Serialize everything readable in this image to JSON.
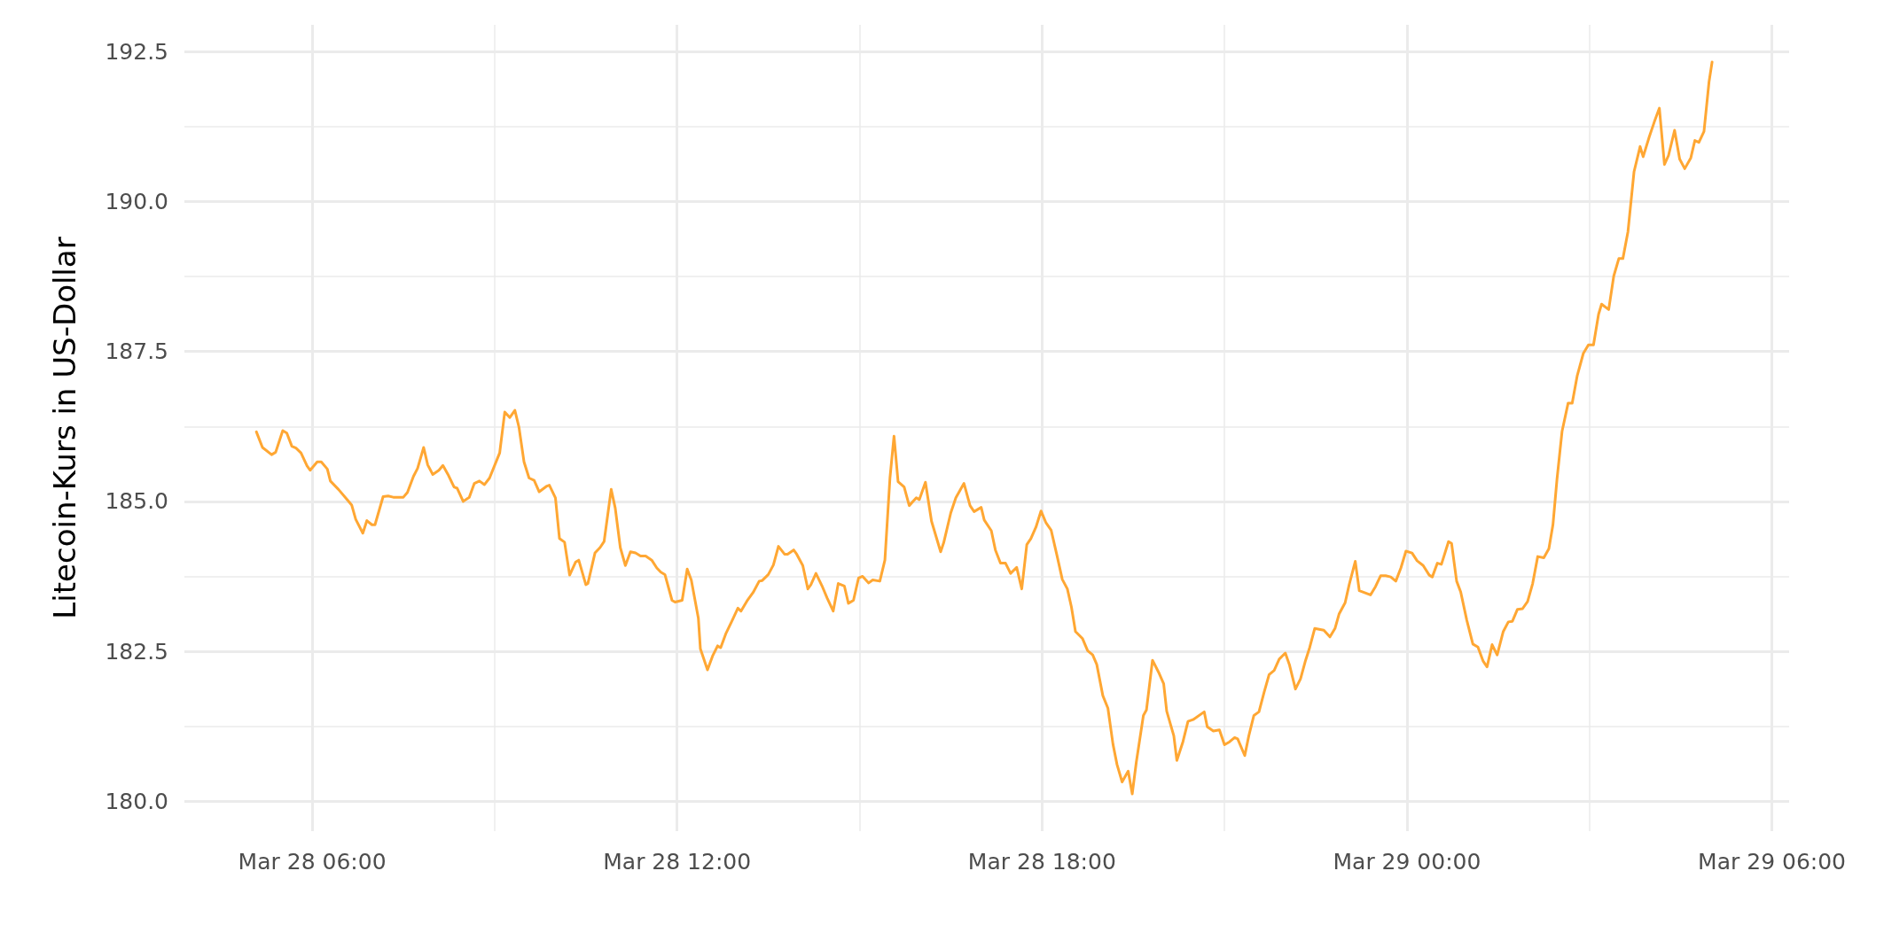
{
  "chart_data": {
    "type": "line",
    "ylabel": "Litecoin-Kurs in US-Dollar",
    "color": "#ffa733",
    "marker": "none",
    "line_style": "solid",
    "grid": true,
    "xlim": [
      "--03-28T03:54",
      "--03-29T06:17"
    ],
    "xticks": [
      {
        "value": "--03-28T06:00",
        "label": "Mar 28 06:00"
      },
      {
        "value": "--03-28T09:00",
        "label": null
      },
      {
        "value": "--03-28T12:00",
        "label": "Mar 28 12:00"
      },
      {
        "value": "--03-28T15:00",
        "label": null
      },
      {
        "value": "--03-28T18:00",
        "label": "Mar 28 18:00"
      },
      {
        "value": "--03-28T21:00",
        "label": null
      },
      {
        "value": "--03-29T00:00",
        "label": "Mar 29 00:00"
      },
      {
        "value": "--03-29T03:00",
        "label": null
      },
      {
        "value": "--03-29T06:00",
        "label": "Mar 29 06:00"
      }
    ],
    "ylim": [
      179.5,
      192.95
    ],
    "yticks": [
      {
        "value": 180,
        "label": "180.0"
      },
      {
        "value": 181.25,
        "label": null
      },
      {
        "value": 182.5,
        "label": "182.5"
      },
      {
        "value": 183.75,
        "label": null
      },
      {
        "value": 185,
        "label": "185.0"
      },
      {
        "value": 186.25,
        "label": null
      },
      {
        "value": 187.5,
        "label": "187.5"
      },
      {
        "value": 188.75,
        "label": null
      },
      {
        "value": 190,
        "label": "190.0"
      },
      {
        "value": 191.25,
        "label": null
      },
      {
        "value": 192.5,
        "label": "192.5"
      }
    ],
    "x": [
      "--03-28T05:05",
      "--03-28T05:11",
      "--03-28T05:20",
      "--03-28T05:24",
      "--03-28T05:31",
      "--03-28T05:35",
      "--03-28T05:40",
      "--03-28T05:44",
      "--03-28T05:49",
      "--03-28T05:55",
      "--03-28T05:58",
      "--03-28T06:05",
      "--03-28T06:09",
      "--03-28T06:15",
      "--03-28T06:18",
      "--03-28T06:26",
      "--03-28T06:35",
      "--03-28T06:39",
      "--03-28T06:43",
      "--03-28T06:50",
      "--03-28T06:54",
      "--03-28T06:59",
      "--03-28T07:02",
      "--03-28T07:10",
      "--03-28T07:15",
      "--03-28T07:20",
      "--03-28T07:30",
      "--03-28T07:34",
      "--03-28T07:40",
      "--03-28T07:44",
      "--03-28T07:50",
      "--03-28T07:54",
      "--03-28T07:59",
      "--03-28T08:05",
      "--03-28T08:09",
      "--03-28T08:14",
      "--03-28T08:20",
      "--03-28T08:23",
      "--03-28T08:29",
      "--03-28T08:35",
      "--03-28T08:40",
      "--03-28T08:45",
      "--03-28T08:50",
      "--03-28T08:55",
      "--03-28T09:05",
      "--03-28T09:10",
      "--03-28T09:15",
      "--03-28T09:20",
      "--03-28T09:24",
      "--03-28T09:29",
      "--03-28T09:34",
      "--03-28T09:39",
      "--03-28T09:44",
      "--03-28T09:51",
      "--03-28T09:54",
      "--03-28T10:00",
      "--03-28T10:04",
      "--03-28T10:09",
      "--03-28T10:14",
      "--03-28T10:20",
      "--03-28T10:23",
      "--03-28T10:30",
      "--03-28T10:32",
      "--03-28T10:39",
      "--03-28T10:44",
      "--03-28T10:48",
      "--03-28T10:55",
      "--03-28T10:59",
      "--03-28T11:04",
      "--03-28T11:09",
      "--03-28T11:14",
      "--03-28T11:19",
      "--03-28T11:24",
      "--03-28T11:29",
      "--03-28T11:35",
      "--03-28T11:40",
      "--03-28T11:44",
      "--03-28T11:48",
      "--03-28T11:55",
      "--03-28T11:58",
      "--03-28T12:05",
      "--03-28T12:10",
      "--03-28T12:14",
      "--03-28T12:21",
      "--03-28T12:23",
      "--03-28T12:30",
      "--03-28T12:35",
      "--03-28T12:40",
      "--03-28T12:43",
      "--03-28T12:48",
      "--03-28T12:54",
      "--03-28T13:00",
      "--03-28T13:03",
      "--03-28T13:09",
      "--03-28T13:15",
      "--03-28T13:21",
      "--03-28T13:24",
      "--03-28T13:30",
      "--03-28T13:35",
      "--03-28T13:40",
      "--03-28T13:46",
      "--03-28T13:49",
      "--03-28T13:55",
      "--03-28T13:58",
      "--03-28T14:04",
      "--03-28T14:09",
      "--03-28T14:12",
      "--03-28T14:17",
      "--03-28T14:23",
      "--03-28T14:28",
      "--03-28T14:34",
      "--03-28T14:39",
      "--03-28T14:45",
      "--03-28T14:49",
      "--03-28T14:54",
      "--03-28T14:59",
      "--03-28T15:03",
      "--03-28T15:09",
      "--03-28T15:13",
      "--03-28T15:20",
      "--03-28T15:25",
      "--03-28T15:30",
      "--03-28T15:34",
      "--03-28T15:38",
      "--03-28T15:44",
      "--03-28T15:49",
      "--03-28T15:56",
      "--03-28T15:59",
      "--03-28T16:05",
      "--03-28T16:11",
      "--03-28T16:20",
      "--03-28T16:23",
      "--03-28T16:30",
      "--03-28T16:35",
      "--03-28T16:43",
      "--03-28T16:49",
      "--03-28T16:53",
      "--03-28T17:00",
      "--03-28T17:03",
      "--03-28T17:10",
      "--03-28T17:14",
      "--03-28T17:19",
      "--03-28T17:24",
      "--03-28T17:29",
      "--03-28T17:35",
      "--03-28T17:40",
      "--03-28T17:45",
      "--03-28T17:49",
      "--03-28T17:54",
      "--03-28T17:59",
      "--03-28T18:04",
      "--03-28T18:09",
      "--03-28T18:15",
      "--03-28T18:20",
      "--03-28T18:25",
      "--03-28T18:29",
      "--03-28T18:33",
      "--03-28T18:40",
      "--03-28T18:45",
      "--03-28T18:50",
      "--03-28T18:54",
      "--03-28T19:00",
      "--03-28T19:05",
      "--03-28T19:10",
      "--03-28T19:14",
      "--03-28T19:19",
      "--03-28T19:25",
      "--03-28T19:29",
      "--03-28T19:33",
      "--03-28T19:40",
      "--03-28T19:43",
      "--03-28T19:49",
      "--03-28T19:55",
      "--03-28T20:00",
      "--03-28T20:03",
      "--03-28T20:10",
      "--03-28T20:13",
      "--03-28T20:19",
      "--03-28T20:24",
      "--03-28T20:29",
      "--03-28T20:40",
      "--03-28T20:43",
      "--03-28T20:49",
      "--03-28T20:55",
      "--03-28T21:00",
      "--03-28T21:05",
      "--03-28T21:10",
      "--03-28T21:13",
      "--03-28T21:20",
      "--03-28T21:24",
      "--03-28T21:29",
      "--03-28T21:34",
      "--03-28T21:39",
      "--03-28T21:44",
      "--03-28T21:49",
      "--03-28T21:54",
      "--03-28T22:00",
      "--03-28T22:04",
      "--03-28T22:10",
      "--03-28T22:15",
      "--03-28T22:20",
      "--03-28T22:24",
      "--03-28T22:29",
      "--03-28T22:38",
      "--03-28T22:44",
      "--03-28T22:49",
      "--03-28T22:53",
      "--03-28T22:59",
      "--03-28T23:03",
      "--03-28T23:09",
      "--03-28T23:13",
      "--03-28T23:24",
      "--03-28T23:29",
      "--03-28T23:34",
      "--03-28T23:39",
      "--03-28T23:44",
      "--03-28T23:49",
      "--03-28T23:54",
      "--03-28T23:59",
      "--03-29T00:05",
      "--03-29T00:10",
      "--03-29T00:16",
      "--03-29T00:22",
      "--03-29T00:25",
      "--03-29T00:30",
      "--03-29T00:34",
      "--03-29T00:41",
      "--03-29T00:44",
      "--03-29T00:49",
      "--03-29T00:53",
      "--03-29T00:59",
      "--03-29T01:05",
      "--03-29T01:10",
      "--03-29T01:15",
      "--03-29T01:19",
      "--03-29T01:24",
      "--03-29T01:29",
      "--03-29T01:35",
      "--03-29T01:40",
      "--03-29T01:44",
      "--03-29T01:49",
      "--03-29T01:54",
      "--03-29T01:59",
      "--03-29T02:04",
      "--03-29T02:09",
      "--03-29T02:15",
      "--03-29T02:20",
      "--03-29T02:24",
      "--03-29T02:28",
      "--03-29T02:33",
      "--03-29T02:39",
      "--03-29T02:43",
      "--03-29T02:48",
      "--03-29T02:54",
      "--03-29T02:59",
      "--03-29T03:04",
      "--03-29T03:09",
      "--03-29T03:12",
      "--03-29T03:19",
      "--03-29T03:24",
      "--03-29T03:29",
      "--03-29T03:33",
      "--03-29T03:38",
      "--03-29T03:44",
      "--03-29T03:50",
      "--03-29T03:53",
      "--03-29T03:59",
      "--03-29T04:04",
      "--03-29T04:09",
      "--03-29T04:14",
      "--03-29T04:18",
      "--03-29T04:24",
      "--03-29T04:29",
      "--03-29T04:34",
      "--03-29T04:40",
      "--03-29T04:44",
      "--03-29T04:48",
      "--03-29T04:53",
      "--03-29T04:58",
      "--03-29T05:01"
    ],
    "values": [
      186.16,
      185.9,
      185.78,
      185.82,
      186.18,
      186.14,
      185.92,
      185.89,
      185.81,
      185.59,
      185.52,
      185.66,
      185.66,
      185.54,
      185.34,
      185.2,
      185.02,
      184.94,
      184.7,
      184.47,
      184.68,
      184.61,
      184.61,
      185.08,
      185.09,
      185.07,
      185.07,
      185.15,
      185.42,
      185.55,
      185.9,
      185.61,
      185.45,
      185.52,
      185.6,
      185.45,
      185.24,
      185.22,
      185.0,
      185.07,
      185.3,
      185.34,
      185.28,
      185.39,
      185.81,
      186.49,
      186.4,
      186.52,
      186.24,
      185.66,
      185.39,
      185.35,
      185.16,
      185.25,
      185.27,
      185.06,
      184.38,
      184.32,
      183.77,
      183.99,
      184.02,
      183.61,
      183.63,
      184.14,
      184.23,
      184.33,
      185.2,
      184.89,
      184.23,
      183.93,
      184.16,
      184.14,
      184.09,
      184.09,
      184.02,
      183.89,
      183.82,
      183.78,
      183.35,
      183.32,
      183.35,
      183.87,
      183.69,
      183.05,
      182.54,
      182.19,
      182.42,
      182.59,
      182.56,
      182.79,
      183.0,
      183.22,
      183.17,
      183.34,
      183.48,
      183.67,
      183.68,
      183.78,
      183.94,
      184.25,
      184.12,
      184.12,
      184.19,
      184.12,
      183.93,
      183.54,
      183.61,
      183.8,
      183.59,
      183.39,
      183.17,
      183.63,
      183.59,
      183.3,
      183.35,
      183.72,
      183.75,
      183.64,
      183.69,
      183.67,
      184.02,
      185.39,
      186.09,
      185.33,
      185.24,
      184.93,
      185.06,
      185.03,
      185.32,
      184.67,
      184.16,
      184.31,
      184.81,
      185.06,
      185.3,
      184.93,
      184.83,
      184.9,
      184.69,
      184.51,
      184.19,
      183.97,
      183.97,
      183.8,
      183.9,
      183.54,
      184.28,
      184.38,
      184.57,
      184.84,
      184.64,
      184.52,
      184.08,
      183.7,
      183.54,
      183.24,
      182.83,
      182.71,
      182.51,
      182.44,
      182.28,
      181.76,
      181.55,
      180.95,
      180.61,
      180.32,
      180.5,
      180.12,
      180.65,
      181.43,
      181.52,
      182.35,
      182.15,
      181.96,
      181.5,
      181.09,
      180.68,
      180.99,
      181.33,
      181.36,
      181.49,
      181.24,
      181.17,
      181.19,
      180.94,
      180.99,
      181.06,
      181.04,
      180.76,
      181.09,
      181.43,
      181.49,
      181.81,
      182.11,
      182.18,
      182.37,
      182.47,
      182.28,
      181.87,
      182.04,
      182.35,
      182.56,
      182.88,
      182.85,
      182.74,
      182.88,
      183.12,
      183.31,
      183.61,
      184.0,
      183.51,
      183.44,
      183.58,
      183.76,
      183.76,
      183.74,
      183.67,
      183.89,
      184.17,
      184.14,
      184.01,
      183.93,
      183.77,
      183.74,
      183.97,
      183.95,
      184.33,
      184.3,
      183.67,
      183.49,
      183.02,
      182.62,
      182.57,
      182.34,
      182.24,
      182.61,
      182.44,
      182.83,
      182.99,
      183.0,
      183.2,
      183.21,
      183.33,
      183.63,
      184.08,
      184.06,
      184.21,
      184.61,
      185.37,
      186.17,
      186.64,
      186.64,
      187.1,
      187.47,
      187.61,
      187.61,
      188.12,
      188.29,
      188.2,
      188.76,
      189.05,
      189.05,
      189.5,
      190.5,
      190.92,
      190.75,
      191.08,
      191.33,
      191.56,
      190.62,
      190.77,
      191.19,
      190.71,
      190.55,
      190.73,
      191.02,
      190.99,
      191.17,
      192.0,
      192.33
    ]
  }
}
